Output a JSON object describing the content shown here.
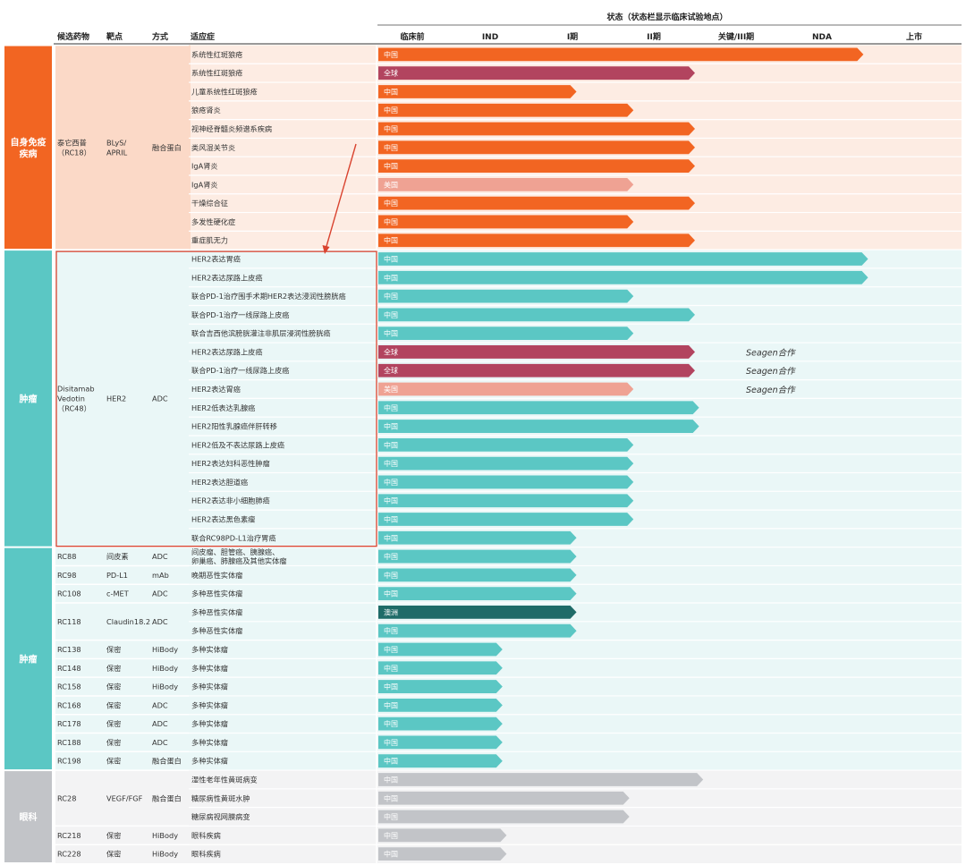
{
  "chart_data": {
    "type": "bar",
    "title": "状态（状态栏显示临床试验地点）",
    "headers": {
      "drug": "候选药物",
      "target": "靶点",
      "modality": "方式",
      "indication": "适应症"
    },
    "stages": [
      "临床前",
      "IND",
      "I期",
      "II期",
      "关键/III期",
      "NDA",
      "上市"
    ],
    "colors": {
      "autoimmune": "#f26522",
      "autoimmune_bg": "#fdece3",
      "oncology": "#5bc7c4",
      "oncology_bg": "#eaf7f7",
      "ophthalmology": "#c2c4c8",
      "ophthalmology_bg": "#f3f3f4",
      "bar_orange": "#f26522",
      "bar_teal": "#5bc7c4",
      "bar_global": "#b2445f",
      "bar_usa": "#efa293",
      "bar_australia": "#1f6b68",
      "bar_grey": "#c2c4c8",
      "highlight_box": "#d9432f"
    },
    "categories": [
      {
        "name": "自身免疫\n疾病",
        "section": "autoimmune",
        "start_row": 0,
        "end_row": 10
      },
      {
        "name": "肿瘤",
        "section": "oncology",
        "start_row": 11,
        "end_row": 26
      },
      {
        "name": "肿瘤",
        "section": "oncology",
        "start_row": 27,
        "end_row": 38
      },
      {
        "name": "眼科",
        "section": "ophthalmology",
        "start_row": 39,
        "end_row": 43
      }
    ],
    "drugs": [
      {
        "drug": "泰它西普\n（RC18）",
        "target": "BLyS/\nAPRIL",
        "modality": "融合蛋白",
        "start_row": 0,
        "end_row": 10
      },
      {
        "drug": "Disitamab\nVedotin\n（RC48）",
        "target": "HER2",
        "modality": "ADC",
        "start_row": 11,
        "end_row": 26
      },
      {
        "drug": "RC88",
        "target": "间皮素",
        "modality": "ADC",
        "start_row": 27,
        "end_row": 27
      },
      {
        "drug": "RC98",
        "target": "PD-L1",
        "modality": "mAb",
        "start_row": 28,
        "end_row": 28
      },
      {
        "drug": "RC108",
        "target": "c-MET",
        "modality": "ADC",
        "start_row": 29,
        "end_row": 29
      },
      {
        "drug": "RC118",
        "target": "Claudin18.2",
        "modality": "ADC",
        "start_row": 30,
        "end_row": 31
      },
      {
        "drug": "RC138",
        "target": "保密",
        "modality": "HiBody",
        "start_row": 32,
        "end_row": 32
      },
      {
        "drug": "RC148",
        "target": "保密",
        "modality": "HiBody",
        "start_row": 33,
        "end_row": 33
      },
      {
        "drug": "RC158",
        "target": "保密",
        "modality": "HiBody",
        "start_row": 34,
        "end_row": 34
      },
      {
        "drug": "RC168",
        "target": "保密",
        "modality": "ADC",
        "start_row": 35,
        "end_row": 35
      },
      {
        "drug": "RC178",
        "target": "保密",
        "modality": "ADC",
        "start_row": 36,
        "end_row": 36
      },
      {
        "drug": "RC188",
        "target": "保密",
        "modality": "ADC",
        "start_row": 37,
        "end_row": 37
      },
      {
        "drug": "RC198",
        "target": "保密",
        "modality": "融合蛋白",
        "start_row": 38,
        "end_row": 38
      },
      {
        "drug": "RC28",
        "target": "VEGF/FGF",
        "modality": "融合蛋白",
        "start_row": 39,
        "end_row": 41
      },
      {
        "drug": "RC218",
        "target": "保密",
        "modality": "HiBody",
        "start_row": 42,
        "end_row": 42
      },
      {
        "drug": "RC228",
        "target": "保密",
        "modality": "HiBody",
        "start_row": 43,
        "end_row": 43
      }
    ],
    "rows": [
      {
        "indication": "系统性红斑狼疮",
        "location": "中国",
        "stage": 5.45,
        "color": "bar_orange"
      },
      {
        "indication": "系统性红斑狼疮",
        "location": "全球",
        "stage": 3.5,
        "color": "bar_global"
      },
      {
        "indication": "儿童系统性红斑狼疮",
        "location": "中国",
        "stage": 2.05,
        "color": "bar_orange"
      },
      {
        "indication": "狼疮肾炎",
        "location": "中国",
        "stage": 2.75,
        "color": "bar_orange"
      },
      {
        "indication": "视神经脊髓炎频谱系疾病",
        "location": "中国",
        "stage": 3.5,
        "color": "bar_orange"
      },
      {
        "indication": "类风湿关节炎",
        "location": "中国",
        "stage": 3.5,
        "color": "bar_orange"
      },
      {
        "indication": "IgA肾炎",
        "location": "中国",
        "stage": 3.5,
        "color": "bar_orange"
      },
      {
        "indication": "IgA肾炎",
        "location": "美国",
        "stage": 2.75,
        "color": "bar_usa"
      },
      {
        "indication": "干燥综合征",
        "location": "中国",
        "stage": 3.5,
        "color": "bar_orange"
      },
      {
        "indication": "多发性硬化症",
        "location": "中国",
        "stage": 2.75,
        "color": "bar_orange"
      },
      {
        "indication": "重症肌无力",
        "location": "中国",
        "stage": 3.5,
        "color": "bar_orange"
      },
      {
        "indication": "HER2表达胃癌",
        "location": "中国",
        "stage": 5.5,
        "color": "bar_teal"
      },
      {
        "indication": "HER2表达尿路上皮癌",
        "location": "中国",
        "stage": 5.5,
        "color": "bar_teal"
      },
      {
        "indication": "联合PD-1治疗围手术期HER2表达浸润性膀胱癌",
        "location": "中国",
        "stage": 2.75,
        "color": "bar_teal"
      },
      {
        "indication": "联合PD-1治疗一线尿路上皮癌",
        "location": "中国",
        "stage": 3.5,
        "color": "bar_teal"
      },
      {
        "indication": "联合吉西他滨膀胱灌注非肌层浸润性膀胱癌",
        "location": "中国",
        "stage": 2.75,
        "color": "bar_teal"
      },
      {
        "indication": "HER2表达尿路上皮癌",
        "location": "全球",
        "stage": 3.5,
        "color": "bar_global",
        "note": "Seagen合作"
      },
      {
        "indication": "联合PD-1治疗一线尿路上皮癌",
        "location": "全球",
        "stage": 3.5,
        "color": "bar_global",
        "note": "Seagen合作"
      },
      {
        "indication": "HER2表达胃癌",
        "location": "美国",
        "stage": 2.75,
        "color": "bar_usa",
        "note": "Seagen合作"
      },
      {
        "indication": "HER2低表达乳腺癌",
        "location": "中国",
        "stage": 3.55,
        "color": "bar_teal"
      },
      {
        "indication": "HER2阳性乳腺癌伴肝转移",
        "location": "中国",
        "stage": 3.55,
        "color": "bar_teal"
      },
      {
        "indication": "HER2低及不表达尿路上皮癌",
        "location": "中国",
        "stage": 2.75,
        "color": "bar_teal"
      },
      {
        "indication": "HER2表达妇科恶性肿瘤",
        "location": "中国",
        "stage": 2.75,
        "color": "bar_teal"
      },
      {
        "indication": "HER2表达胆道癌",
        "location": "中国",
        "stage": 2.75,
        "color": "bar_teal"
      },
      {
        "indication": "HER2表达非小细胞肺癌",
        "location": "中国",
        "stage": 2.75,
        "color": "bar_teal"
      },
      {
        "indication": "HER2表达黑色素瘤",
        "location": "中国",
        "stage": 2.75,
        "color": "bar_teal"
      },
      {
        "indication": "联合RC98PD-L1治疗胃癌",
        "location": "中国",
        "stage": 2.05,
        "color": "bar_teal"
      },
      {
        "indication": "间皮瘤、胆管癌、胰腺癌、\n卵巢癌、肺腺癌及其他实体瘤",
        "location": "中国",
        "stage": 2.05,
        "color": "bar_teal"
      },
      {
        "indication": "晚期恶性实体瘤",
        "location": "中国",
        "stage": 2.05,
        "color": "bar_teal"
      },
      {
        "indication": "多种恶性实体瘤",
        "location": "中国",
        "stage": 2.05,
        "color": "bar_teal"
      },
      {
        "indication": "多种恶性实体瘤",
        "location": "澳洲",
        "stage": 2.05,
        "color": "bar_australia"
      },
      {
        "indication": "多种恶性实体瘤",
        "location": "中国",
        "stage": 2.05,
        "color": "bar_teal"
      },
      {
        "indication": "多种实体瘤",
        "location": "中国",
        "stage": 1.15,
        "color": "bar_teal"
      },
      {
        "indication": "多种实体瘤",
        "location": "中国",
        "stage": 1.15,
        "color": "bar_teal"
      },
      {
        "indication": "多种实体瘤",
        "location": "中国",
        "stage": 1.15,
        "color": "bar_teal"
      },
      {
        "indication": "多种实体瘤",
        "location": "中国",
        "stage": 1.15,
        "color": "bar_teal"
      },
      {
        "indication": "多种实体瘤",
        "location": "中国",
        "stage": 1.15,
        "color": "bar_teal"
      },
      {
        "indication": "多种实体瘤",
        "location": "中国",
        "stage": 1.15,
        "color": "bar_teal"
      },
      {
        "indication": "多种实体瘤",
        "location": "中国",
        "stage": 1.15,
        "color": "bar_teal"
      },
      {
        "indication": "湿性老年性黄斑病变",
        "location": "中国",
        "stage": 3.6,
        "color": "bar_grey"
      },
      {
        "indication": "糖尿病性黄斑水肿",
        "location": "中国",
        "stage": 2.7,
        "color": "bar_grey"
      },
      {
        "indication": "糖尿病视网膜病变",
        "location": "中国",
        "stage": 2.7,
        "color": "bar_grey"
      },
      {
        "indication": "眼科疾病",
        "location": "中国",
        "stage": 1.2,
        "color": "bar_grey"
      },
      {
        "indication": "眼科疾病",
        "location": "中国",
        "stage": 1.2,
        "color": "bar_grey"
      }
    ],
    "highlight": {
      "start_row": 11,
      "end_row": 26
    }
  }
}
